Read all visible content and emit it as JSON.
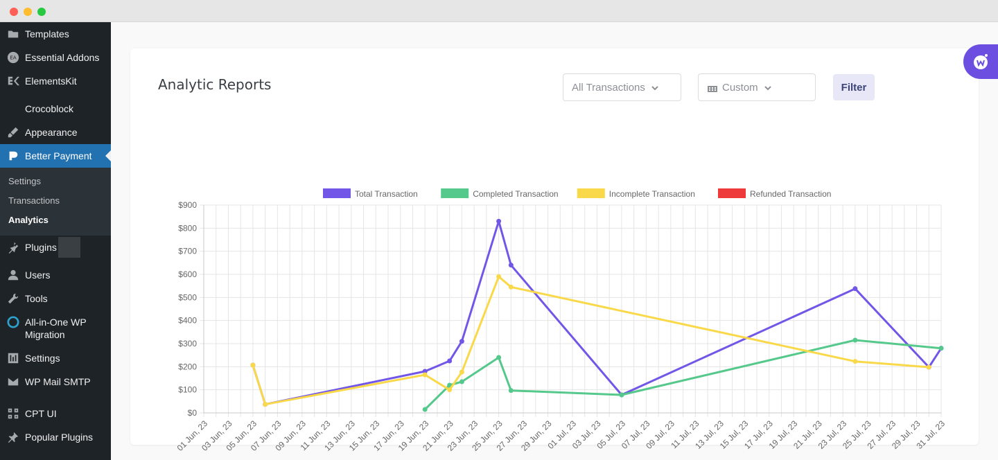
{
  "sidebar": {
    "items": [
      {
        "label": "Templates",
        "icon": "folder-icon"
      },
      {
        "label": "Essential Addons",
        "icon": "ea-icon"
      },
      {
        "label": "ElementsKit",
        "icon": "elementskit-icon"
      },
      {
        "label": "Crocoblock",
        "icon": "crocoblock-icon"
      },
      {
        "label": "Appearance",
        "icon": "brush-icon"
      },
      {
        "label": "Better Payment",
        "icon": "better-payment-icon",
        "active": true
      }
    ],
    "submenu": [
      "Settings",
      "Transactions",
      "Analytics"
    ],
    "items_after": [
      {
        "label": "Plugins",
        "icon": "plugin-icon"
      },
      {
        "label": "Users",
        "icon": "user-icon"
      },
      {
        "label": "Tools",
        "icon": "wrench-icon"
      },
      {
        "label": "All-in-One WP Migration",
        "icon": "migration-icon"
      },
      {
        "label": "Settings",
        "icon": "settings-sliders-icon"
      },
      {
        "label": "WP Mail SMTP",
        "icon": "mail-icon"
      },
      {
        "label": "CPT UI",
        "icon": "grid-icon"
      },
      {
        "label": "Popular Plugins",
        "icon": "pin-icon"
      }
    ]
  },
  "report": {
    "title": "Analytic Reports",
    "transaction_select": "All Transactions",
    "date_select": "Custom",
    "filter_label": "Filter"
  },
  "colors": {
    "total": "#7256e8",
    "completed": "#55c88b",
    "incomplete": "#f9d94a",
    "refunded": "#ee3a3a"
  },
  "chart_data": {
    "type": "line",
    "x_ticks": [
      "01 Jun, 23",
      "03 Jun, 23",
      "05 Jun, 23",
      "07 Jun, 23",
      "09 Jun, 23",
      "11 Jun, 23",
      "13 Jun, 23",
      "15 Jun, 23",
      "17 Jun, 23",
      "19 Jun, 23",
      "21 Jun, 23",
      "23 Jun, 23",
      "25 Jun, 23",
      "27 Jun, 23",
      "29 Jun, 23",
      "01 Jul, 23",
      "03 Jul, 23",
      "05 Jul, 23",
      "07 Jul, 23",
      "09 Jul, 23",
      "11 Jul, 23",
      "13 Jul, 23",
      "15 Jul, 23",
      "17 Jul, 23",
      "19 Jul, 23",
      "21 Jul, 23",
      "23 Jul, 23",
      "25 Jul, 23",
      "27 Jul, 23",
      "29 Jul, 23",
      "31 Jul, 23"
    ],
    "y_ticks": [
      "$0",
      "$100",
      "$200",
      "$300",
      "$400",
      "$500",
      "$600",
      "$700",
      "$800",
      "$900"
    ],
    "ylim": [
      0,
      900
    ],
    "x_range": [
      "2023-06-01",
      "2023-07-31"
    ],
    "legend_position": "top",
    "grid": true,
    "series": [
      {
        "name": "Total Transaction",
        "points": [
          [
            "2023-06-05",
            207
          ],
          [
            "2023-06-06",
            37
          ],
          [
            "2023-06-19",
            180
          ],
          [
            "2023-06-21",
            225
          ],
          [
            "2023-06-22",
            310
          ],
          [
            "2023-06-25",
            830
          ],
          [
            "2023-06-26",
            640
          ],
          [
            "2023-07-05",
            78
          ],
          [
            "2023-07-24",
            538
          ],
          [
            "2023-07-30",
            198
          ],
          [
            "2023-07-31",
            280
          ]
        ]
      },
      {
        "name": "Completed Transaction",
        "points": [
          [
            "2023-06-19",
            15
          ],
          [
            "2023-06-21",
            120
          ],
          [
            "2023-06-22",
            135
          ],
          [
            "2023-06-25",
            240
          ],
          [
            "2023-06-26",
            97
          ],
          [
            "2023-07-05",
            78
          ],
          [
            "2023-07-24",
            315
          ],
          [
            "2023-07-31",
            280
          ]
        ]
      },
      {
        "name": "Incomplete Transaction",
        "points": [
          [
            "2023-06-05",
            207
          ],
          [
            "2023-06-06",
            37
          ],
          [
            "2023-06-19",
            165
          ],
          [
            "2023-06-21",
            100
          ],
          [
            "2023-06-22",
            177
          ],
          [
            "2023-06-25",
            590
          ],
          [
            "2023-06-26",
            545
          ],
          [
            "2023-07-24",
            223
          ],
          [
            "2023-07-30",
            198
          ]
        ]
      },
      {
        "name": "Refunded Transaction",
        "points": []
      }
    ]
  }
}
